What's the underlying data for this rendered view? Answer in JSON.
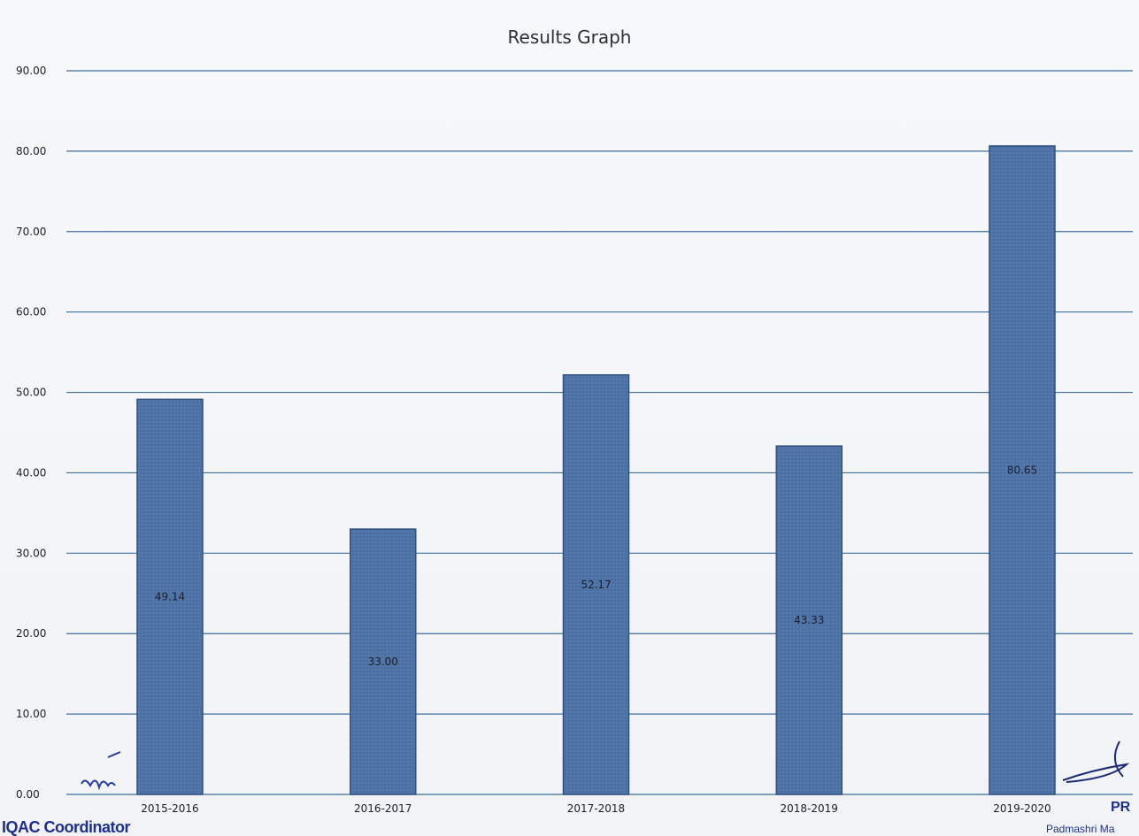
{
  "chart_data": {
    "type": "bar",
    "title": "Results Graph",
    "categories": [
      "2015-2016",
      "2016-2017",
      "2017-2018",
      "2018-2019",
      "2019-2020"
    ],
    "values": [
      49.14,
      33.0,
      52.17,
      43.33,
      80.65
    ],
    "data_labels": [
      "49.14",
      "33.00",
      "52.17",
      "43.33",
      "80.65"
    ],
    "ylim": [
      0,
      90
    ],
    "yticks": [
      "0.00",
      "10.00",
      "20.00",
      "30.00",
      "40.00",
      "50.00",
      "60.00",
      "70.00",
      "80.00",
      "90.00"
    ],
    "ytick_values": [
      0,
      10,
      20,
      30,
      40,
      50,
      60,
      70,
      80,
      90
    ],
    "grid": true,
    "bar_color": "#4f73a6",
    "grid_color": "#3e6e9a"
  },
  "footer": {
    "left": "IQAC Coordinator",
    "right_short": "PR",
    "right_sub": "Padmashri Ma"
  }
}
